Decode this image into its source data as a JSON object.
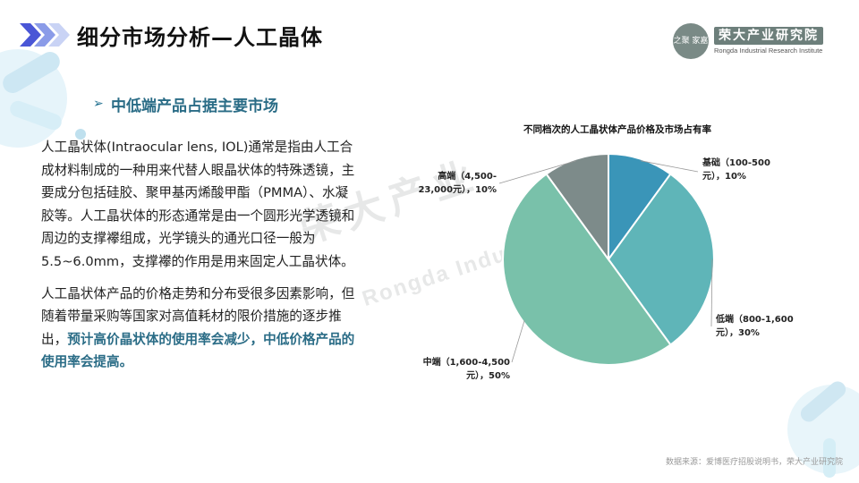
{
  "header": {
    "title": "细分市场分析—人工晶体"
  },
  "logo": {
    "seal_text": "之聚 家嘉",
    "name": "荣大产业研究院",
    "subtitle": "Rongda Industrial Research Institute"
  },
  "section": {
    "arrow": "➢",
    "title": "中低端产品占据主要市场"
  },
  "body": {
    "p1": "人工晶状体(Intraocular lens, IOL)通常是指由人工合成材料制成的一种用来代替人眼晶状体的特殊透镜，主要成分包括硅胶、聚甲基丙烯酸甲酯（PMMA）、水凝胶等。人工晶状体的形态通常是由一个圆形光学透镜和周边的支撑襻组成，光学镜头的通光口径一般为5.5~6.0mm，支撑襻的作用是用来固定人工晶状体。",
    "p2_plain": "人工晶状体产品的价格走势和分布受很多因素影响，但随着带量采购等国家对高值耗材的限价措施的逐步推出，",
    "p2_highlight": "预计高价晶状体的使用率会减少，中低价格产品的使用率会提高。"
  },
  "chart_data": {
    "type": "pie",
    "title": "不同档次的人工晶状体产品价格及市场占有率",
    "slices": [
      {
        "label_line1": "基础（100-500",
        "label_line2": "元），10%",
        "value": 10,
        "color": "#3a95b8"
      },
      {
        "label_line1": "低端（800-1,600",
        "label_line2": "元），30%",
        "value": 30,
        "color": "#5fb5b8"
      },
      {
        "label_line1": "中端（1,600-4,500",
        "label_line2": "元），50%",
        "value": 50,
        "color": "#79c1aa"
      },
      {
        "label_line1": "高端（4,500-",
        "label_line2": "23,000元），10%",
        "value": 10,
        "color": "#7d8b8a"
      }
    ]
  },
  "watermark": {
    "cn": "荣大产业",
    "en": "Rongda Industrial"
  },
  "source": "数据来源：爱博医疗招股说明书，荣大产业研究院"
}
